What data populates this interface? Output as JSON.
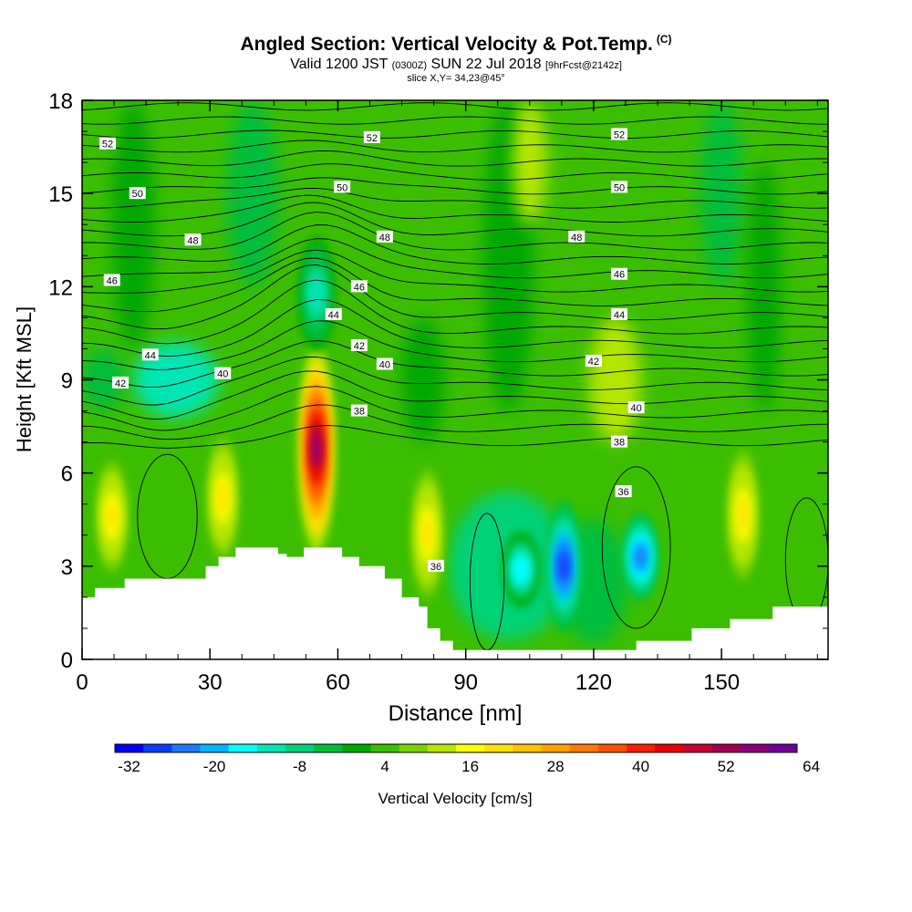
{
  "chart_data": {
    "type": "heatmap",
    "title": "Angled Section: Vertical Velocity & Pot.Temp.",
    "title_tag": "(C)",
    "subtitle_prefix": "Valid 1200 JST",
    "subtitle_zulu": "(0300Z)",
    "subtitle_date": "SUN 22 Jul 2018",
    "subtitle_run": "[9hrFcst@2142z]",
    "slice_info": "slice X,Y= 34,23@45°",
    "xlabel": "Distance [nm]",
    "ylabel": "Height [Kft MSL]",
    "xlim": [
      0,
      175
    ],
    "ylim": [
      0,
      18
    ],
    "x_ticks": [
      "0",
      "30",
      "60",
      "90",
      "120",
      "150"
    ],
    "y_ticks": [
      "0",
      "3",
      "6",
      "9",
      "12",
      "15",
      "18"
    ],
    "colorbar": {
      "label": "Vertical Velocity [cm/s]",
      "tick_labels": [
        "-32",
        "-20",
        "-8",
        "4",
        "16",
        "28",
        "40",
        "52",
        "64"
      ],
      "colors": [
        "#0000ff",
        "#0a3cff",
        "#1e78ff",
        "#00b4ff",
        "#00ffff",
        "#00e6b4",
        "#00d278",
        "#00be3c",
        "#00a800",
        "#3cbe00",
        "#78d200",
        "#b4e600",
        "#ffff00",
        "#ffe000",
        "#ffc000",
        "#ffa000",
        "#ff7800",
        "#ff5000",
        "#ff1e00",
        "#e60000",
        "#c80032",
        "#a00050",
        "#8c0078",
        "#6e0096"
      ]
    },
    "updraft_cores": [
      {
        "x": 55,
        "z_bottom": 3.6,
        "z_top": 10.0,
        "peak_cms": 52
      },
      {
        "x": 33,
        "z_bottom": 3.0,
        "z_top": 7.4,
        "peak_cms": 16
      },
      {
        "x": 7,
        "z_bottom": 2.6,
        "z_top": 6.6,
        "peak_cms": 16
      },
      {
        "x": 81,
        "z_bottom": 1.7,
        "z_top": 6.4,
        "peak_cms": 16
      },
      {
        "x": 155,
        "z_bottom": 2.3,
        "z_top": 7.0,
        "peak_cms": 16
      }
    ],
    "downdraft_cores": [
      {
        "x": 113,
        "z_bottom": 1.0,
        "z_top": 5.0,
        "peak_cms": -32
      },
      {
        "x": 131,
        "z_bottom": 2.0,
        "z_top": 4.6,
        "peak_cms": -26
      },
      {
        "x": 103,
        "z_bottom": 1.8,
        "z_top": 4.0,
        "peak_cms": -20
      },
      {
        "x": 55,
        "z_bottom": 10.0,
        "z_top": 13.5,
        "peak_cms": -16
      }
    ],
    "theta_contour_labels": [
      {
        "value": "52",
        "x": 6,
        "z": 16.6
      },
      {
        "value": "52",
        "x": 68,
        "z": 16.8
      },
      {
        "value": "52",
        "x": 126,
        "z": 16.9
      },
      {
        "value": "50",
        "x": 13,
        "z": 15.0
      },
      {
        "value": "50",
        "x": 61,
        "z": 15.2
      },
      {
        "value": "50",
        "x": 126,
        "z": 15.2
      },
      {
        "value": "48",
        "x": 26,
        "z": 13.5
      },
      {
        "value": "48",
        "x": 71,
        "z": 13.6
      },
      {
        "value": "48",
        "x": 116,
        "z": 13.6
      },
      {
        "value": "46",
        "x": 7,
        "z": 12.2
      },
      {
        "value": "46",
        "x": 65,
        "z": 12.0
      },
      {
        "value": "46",
        "x": 126,
        "z": 12.4
      },
      {
        "value": "44",
        "x": 16,
        "z": 9.8
      },
      {
        "value": "44",
        "x": 59,
        "z": 11.1
      },
      {
        "value": "44",
        "x": 126,
        "z": 11.1
      },
      {
        "value": "42",
        "x": 9,
        "z": 8.9
      },
      {
        "value": "42",
        "x": 65,
        "z": 10.1
      },
      {
        "value": "42",
        "x": 120,
        "z": 9.6
      },
      {
        "value": "40",
        "x": 33,
        "z": 9.2
      },
      {
        "value": "40",
        "x": 71,
        "z": 9.5
      },
      {
        "value": "40",
        "x": 130,
        "z": 8.1
      },
      {
        "value": "38",
        "x": 65,
        "z": 8.0
      },
      {
        "value": "38",
        "x": 126,
        "z": 7.0
      },
      {
        "value": "36",
        "x": 127,
        "z": 5.4
      },
      {
        "value": "36",
        "x": 83,
        "z": 3.0
      }
    ],
    "terrain_kft": [
      [
        0,
        2.0
      ],
      [
        3,
        2.0
      ],
      [
        3,
        2.3
      ],
      [
        10,
        2.3
      ],
      [
        10,
        2.6
      ],
      [
        29,
        2.6
      ],
      [
        29,
        3.0
      ],
      [
        32,
        3.0
      ],
      [
        32,
        3.3
      ],
      [
        36,
        3.3
      ],
      [
        36,
        3.6
      ],
      [
        46,
        3.6
      ],
      [
        46,
        3.4
      ],
      [
        48,
        3.4
      ],
      [
        48,
        3.3
      ],
      [
        52,
        3.3
      ],
      [
        52,
        3.6
      ],
      [
        61,
        3.6
      ],
      [
        61,
        3.3
      ],
      [
        65,
        3.3
      ],
      [
        65,
        3.0
      ],
      [
        71,
        3.0
      ],
      [
        71,
        2.6
      ],
      [
        75,
        2.6
      ],
      [
        75,
        2.0
      ],
      [
        79,
        2.0
      ],
      [
        79,
        1.7
      ],
      [
        81,
        1.7
      ],
      [
        81,
        1.0
      ],
      [
        84,
        1.0
      ],
      [
        84,
        0.6
      ],
      [
        87,
        0.6
      ],
      [
        87,
        0.3
      ],
      [
        130,
        0.3
      ],
      [
        130,
        0.6
      ],
      [
        143,
        0.6
      ],
      [
        143,
        1.0
      ],
      [
        152,
        1.0
      ],
      [
        152,
        1.3
      ],
      [
        162,
        1.3
      ],
      [
        162,
        1.7
      ],
      [
        175,
        1.7
      ]
    ]
  }
}
